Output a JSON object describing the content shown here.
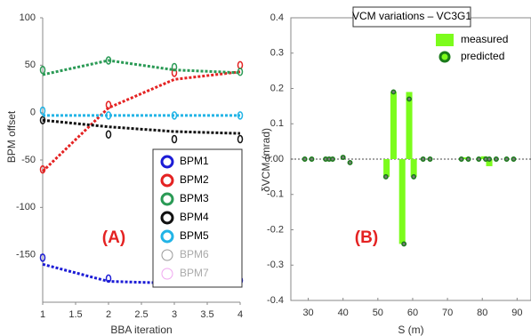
{
  "chart_data": [
    {
      "type": "line",
      "annotation": "(A)",
      "y_label": "BPM offset",
      "x_label": "BBA iteration",
      "x": [
        1,
        2,
        3,
        4
      ],
      "xlim": [
        1,
        4
      ],
      "xticks": [
        1,
        1.5,
        2,
        2.5,
        3,
        3.5,
        4
      ],
      "ylim": [
        -200,
        100
      ],
      "yticks": [
        -150,
        -100,
        -50,
        0,
        50,
        100
      ],
      "legend": "lower right",
      "series": [
        {
          "name": "BPM1",
          "color": "#1c1cd6",
          "values": [
            -153,
            -175,
            -177,
            -177
          ],
          "fit": [
            -160,
            -178,
            -180,
            -180
          ]
        },
        {
          "name": "BPM2",
          "color": "#e42222",
          "values": [
            -60,
            8,
            42,
            50
          ],
          "fit": [
            -62,
            5,
            35,
            43
          ]
        },
        {
          "name": "BPM3",
          "color": "#2a9a55",
          "values": [
            45,
            55,
            48,
            43
          ],
          "fit": [
            40,
            55,
            45,
            42
          ]
        },
        {
          "name": "BPM4",
          "color": "#111111",
          "values": [
            -8,
            -23,
            -28,
            -28
          ],
          "fit": [
            -8,
            -15,
            -20,
            -22
          ]
        },
        {
          "name": "BPM5",
          "color": "#22b4e6",
          "values": [
            2,
            -3,
            -3,
            -3
          ],
          "fit": [
            -3,
            -3,
            -3,
            -3
          ]
        },
        {
          "name": "BPM6",
          "color": "#9a9a9a",
          "values": [
            null,
            null,
            null,
            null
          ],
          "fit": [
            null,
            null,
            null,
            null
          ]
        },
        {
          "name": "BPM7",
          "color": "#f0a8f0",
          "values": [
            null,
            null,
            null,
            null
          ],
          "fit": [
            null,
            null,
            null,
            null
          ]
        }
      ]
    },
    {
      "type": "bar",
      "title": "VCM variations – VC3G1",
      "annotation": "(B)",
      "y_label": "δVCM  (mrad)",
      "x_label": "S (m)",
      "xlim": [
        25,
        94
      ],
      "xticks": [
        30,
        40,
        50,
        60,
        70,
        80,
        90
      ],
      "ylim": [
        -0.4,
        0.4
      ],
      "yticks": [
        0.4,
        0.3,
        0.2,
        0.1,
        {
          "value": 0,
          "label": "0.00"
        },
        -0.1,
        -0.2,
        -0.3,
        -0.4
      ],
      "bar_width": 1.8,
      "legend": "upper right",
      "series": [
        {
          "name": "measured",
          "type": "bar",
          "color": "#7cfc1c",
          "x": [
            52.5,
            54.5,
            57,
            59,
            60.3,
            75,
            80.5,
            82
          ],
          "values": [
            -0.05,
            0.19,
            -0.24,
            0.19,
            -0.05,
            0.005,
            0.008,
            -0.02
          ]
        },
        {
          "name": "predicted",
          "type": "scatter",
          "color": "#1a7a1a",
          "x": [
            29,
            31,
            35,
            36,
            37,
            40,
            42,
            52.3,
            54.5,
            57.5,
            59,
            60.3,
            63,
            65,
            74,
            76,
            79,
            81,
            82,
            84,
            87,
            89
          ],
          "values": [
            0,
            0,
            0,
            0,
            0,
            0.005,
            -0.01,
            -0.05,
            0.19,
            -0.24,
            0.17,
            -0.05,
            0,
            0,
            0,
            0,
            0,
            0,
            0,
            0,
            0,
            0
          ]
        }
      ]
    }
  ]
}
